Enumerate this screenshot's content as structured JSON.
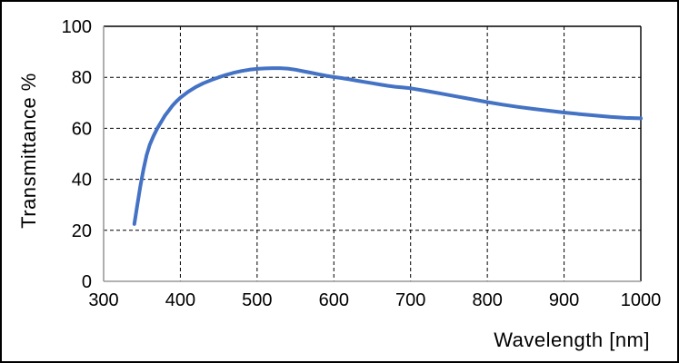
{
  "figure": {
    "background": "#ffffff",
    "outer_border_color": "#000000"
  },
  "chart_data": {
    "type": "line",
    "title": "",
    "xlabel": "Wavelength [nm]",
    "ylabel": "Transmittance %",
    "xlim": [
      300,
      1000
    ],
    "ylim": [
      0,
      100
    ],
    "x_ticks": [
      300,
      400,
      500,
      600,
      700,
      800,
      900,
      1000
    ],
    "y_ticks": [
      0,
      20,
      40,
      60,
      80,
      100
    ],
    "grid": "dashed-both-axes",
    "grid_color": "#000000",
    "axis_line_color": "#999999",
    "plot_border_color": "#000000",
    "legend": "none",
    "series": [
      {
        "name": "Transmittance",
        "color": "#4472C4",
        "line_width": 4,
        "points": [
          [
            340,
            22.5
          ],
          [
            344,
            30
          ],
          [
            348,
            37.5
          ],
          [
            352,
            44
          ],
          [
            356,
            49.5
          ],
          [
            360,
            53.5
          ],
          [
            365,
            57
          ],
          [
            370,
            60
          ],
          [
            375,
            62.5
          ],
          [
            380,
            65
          ],
          [
            385,
            67
          ],
          [
            390,
            69
          ],
          [
            395,
            70.6
          ],
          [
            400,
            72
          ],
          [
            410,
            74.3
          ],
          [
            420,
            76.2
          ],
          [
            430,
            77.7
          ],
          [
            440,
            78.9
          ],
          [
            450,
            80
          ],
          [
            460,
            81
          ],
          [
            470,
            81.8
          ],
          [
            480,
            82.5
          ],
          [
            490,
            83
          ],
          [
            500,
            83.3
          ],
          [
            510,
            83.5
          ],
          [
            520,
            83.6
          ],
          [
            530,
            83.6
          ],
          [
            540,
            83.4
          ],
          [
            550,
            83
          ],
          [
            560,
            82.4
          ],
          [
            570,
            81.8
          ],
          [
            580,
            81.2
          ],
          [
            590,
            80.6
          ],
          [
            600,
            80.1
          ],
          [
            610,
            79.7
          ],
          [
            620,
            79.2
          ],
          [
            630,
            78.7
          ],
          [
            640,
            78.2
          ],
          [
            650,
            77.7
          ],
          [
            660,
            77.2
          ],
          [
            670,
            76.7
          ],
          [
            680,
            76.3
          ],
          [
            690,
            76
          ],
          [
            700,
            75.7
          ],
          [
            720,
            74.7
          ],
          [
            740,
            73.6
          ],
          [
            760,
            72.5
          ],
          [
            780,
            71.4
          ],
          [
            800,
            70.3
          ],
          [
            820,
            69.3
          ],
          [
            840,
            68.4
          ],
          [
            860,
            67.6
          ],
          [
            880,
            66.9
          ],
          [
            900,
            66.2
          ],
          [
            920,
            65.6
          ],
          [
            940,
            65
          ],
          [
            960,
            64.5
          ],
          [
            980,
            64.1
          ],
          [
            1000,
            63.9
          ]
        ]
      }
    ]
  }
}
